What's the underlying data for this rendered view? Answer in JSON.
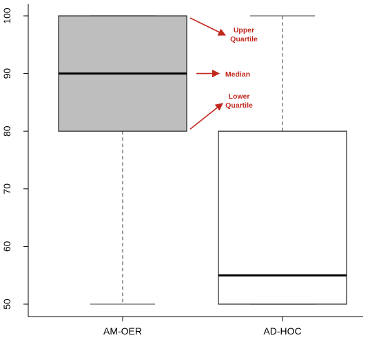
{
  "chart_data": {
    "type": "box",
    "categories": [
      "AM-OER",
      "AD-HOC"
    ],
    "ylim": [
      50,
      100
    ],
    "yticks": [
      "50",
      "60",
      "70",
      "80",
      "90",
      "100"
    ],
    "boxes": [
      {
        "category": "AM-OER",
        "min": 50,
        "q1": 80,
        "median": 90,
        "q3": 100,
        "max": 100,
        "fill": "#bebebe"
      },
      {
        "category": "AD-HOC",
        "min": 50,
        "q1": 50,
        "median": 55,
        "q3": 80,
        "max": 100,
        "fill": "#ffffff"
      }
    ],
    "annotations": [
      {
        "lines": [
          "Upper",
          "Quartile"
        ],
        "value": 100
      },
      {
        "lines": [
          "Median"
        ],
        "value": 90
      },
      {
        "lines": [
          "Lower",
          "Quartile"
        ],
        "value": 80
      }
    ],
    "annotation_color": "#c0281c",
    "grid": false,
    "legend": "none"
  }
}
